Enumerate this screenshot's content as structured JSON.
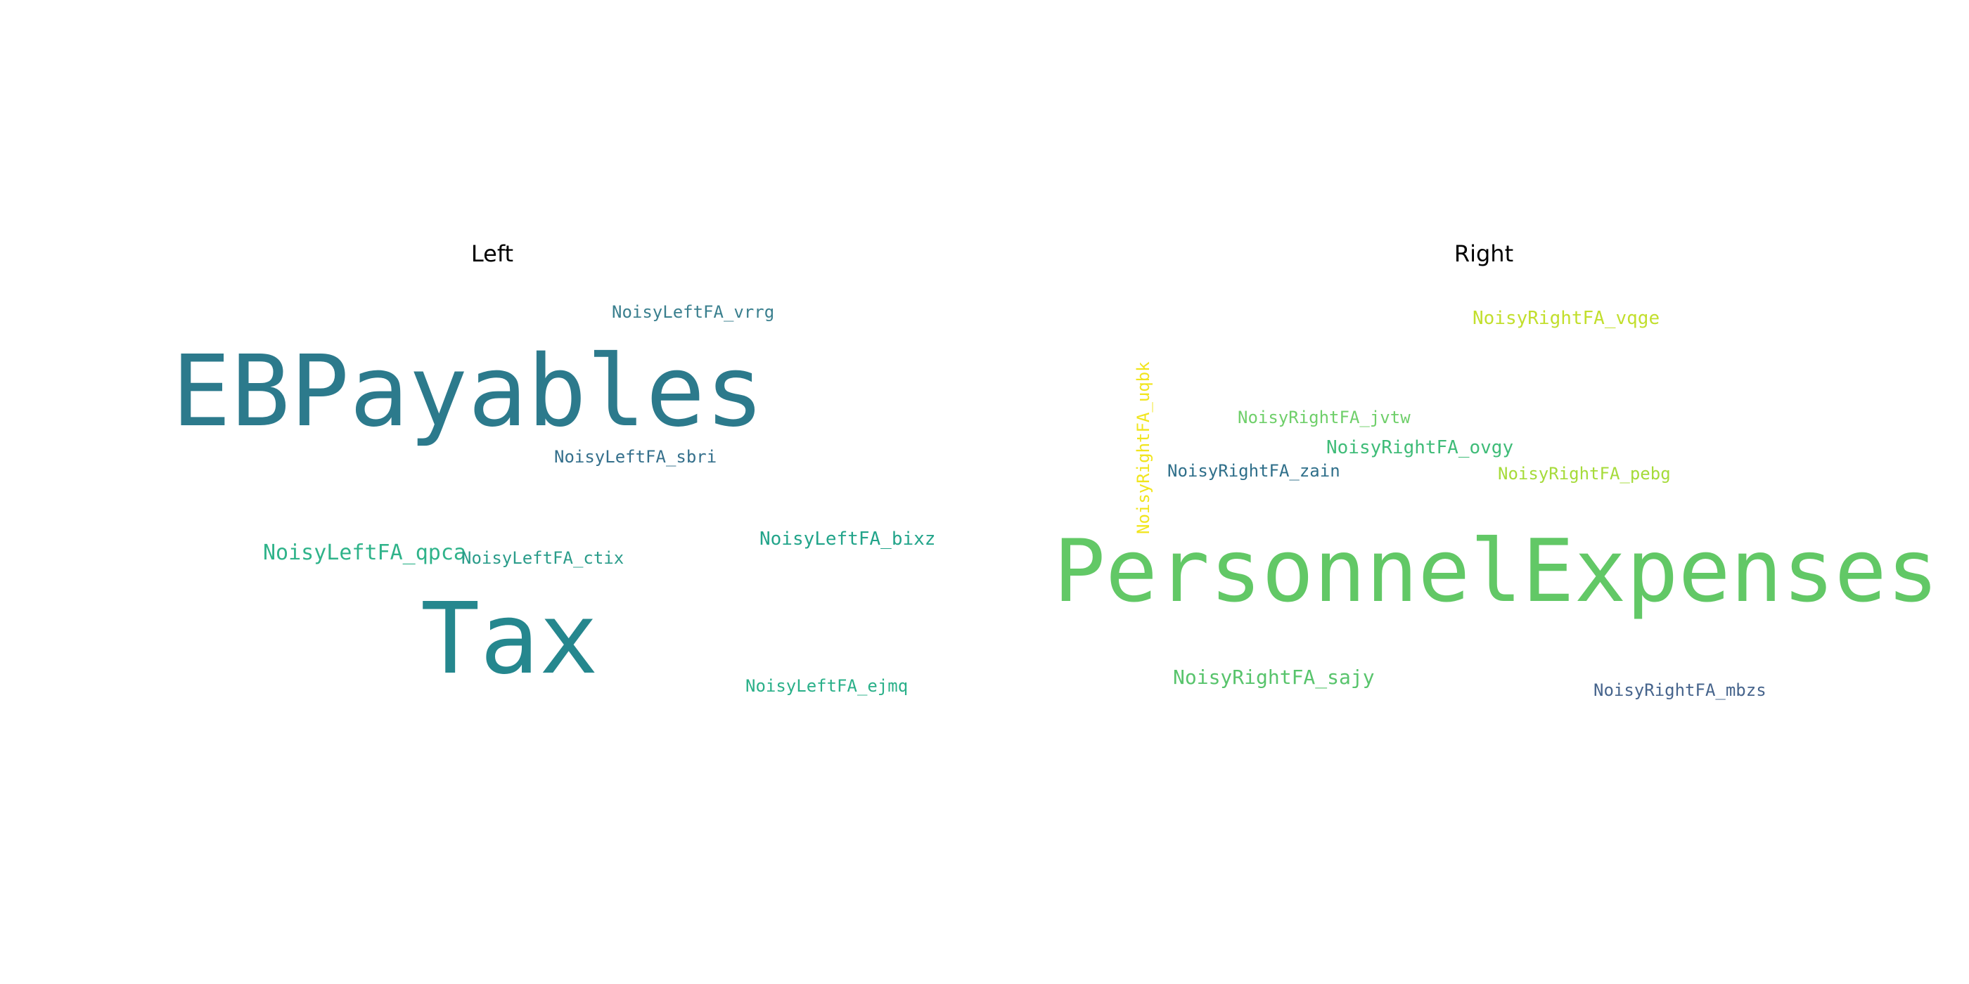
{
  "panels": {
    "left": {
      "title": "Left",
      "words": [
        {
          "text": "EBPayables",
          "color": "#2c7a8c"
        },
        {
          "text": "Tax",
          "color": "#25878e"
        },
        {
          "text": "NoisyLeftFA_vrrg",
          "color": "#3a7f8e"
        },
        {
          "text": "NoisyLeftFA_sbri",
          "color": "#35708c"
        },
        {
          "text": "NoisyLeftFA_qpca",
          "color": "#2fb38a"
        },
        {
          "text": "NoisyLeftFA_ctix",
          "color": "#2a9c8a"
        },
        {
          "text": "NoisyLeftFA_bixz",
          "color": "#22a48a"
        },
        {
          "text": "NoisyLeftFA_ejmq",
          "color": "#2ab089"
        }
      ]
    },
    "right": {
      "title": "Right",
      "words": [
        {
          "text": "PersonnelExpenses",
          "color": "#62c866"
        },
        {
          "text": "NoisyRightFA_vqge",
          "color": "#c2df2d"
        },
        {
          "text": "NoisyRightFA_jvtw",
          "color": "#6fcf6a"
        },
        {
          "text": "NoisyRightFA_ovgy",
          "color": "#3fbc78"
        },
        {
          "text": "NoisyRightFA_zain",
          "color": "#2f6f8a"
        },
        {
          "text": "NoisyRightFA_pebg",
          "color": "#a6db3a"
        },
        {
          "text": "NoisyRightFA_sajy",
          "color": "#58c46c"
        },
        {
          "text": "NoisyRightFA_mbzs",
          "color": "#46648c"
        },
        {
          "text": "NoisyRightFA_uqbk",
          "color": "#f1e51d"
        }
      ]
    }
  }
}
